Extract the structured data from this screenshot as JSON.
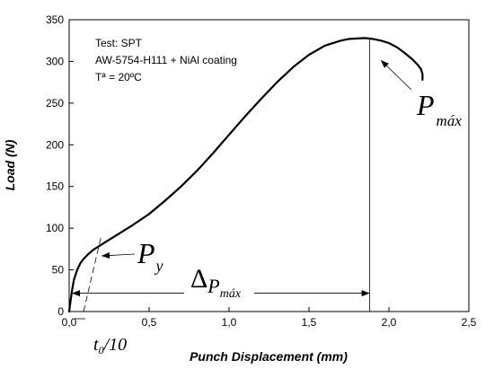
{
  "chart_data": {
    "type": "line",
    "xlabel": "Punch Displacement (mm)",
    "ylabel": "Load (N)",
    "xlim": [
      0,
      2.5
    ],
    "ylim": [
      0,
      350
    ],
    "x_ticks": [
      "0,0",
      "0,5",
      "1,0",
      "1,5",
      "2,0",
      "2,5"
    ],
    "x_tick_values": [
      0,
      0.5,
      1.0,
      1.5,
      2.0,
      2.5
    ],
    "y_ticks": [
      "0",
      "50",
      "100",
      "150",
      "200",
      "250",
      "300",
      "350"
    ],
    "y_tick_values": [
      0,
      50,
      100,
      150,
      200,
      250,
      300,
      350
    ],
    "grid": false,
    "info_lines": [
      "Test: SPT",
      "AW-5754-H111 + NiAl coating",
      "Tª = 20ºC"
    ],
    "series": [
      {
        "x": [
          0.0,
          0.01,
          0.02,
          0.03,
          0.05,
          0.07,
          0.09,
          0.12,
          0.15,
          0.2,
          0.25,
          0.3,
          0.4,
          0.5,
          0.6,
          0.7,
          0.8,
          0.9,
          1.0,
          1.1,
          1.2,
          1.3,
          1.4,
          1.5,
          1.6,
          1.7,
          1.75,
          1.8,
          1.85,
          1.9,
          1.95,
          2.0,
          2.05,
          2.1,
          2.15,
          2.18,
          2.2,
          2.21,
          2.21
        ],
        "y": [
          0,
          15,
          28,
          38,
          50,
          58,
          63,
          69,
          74,
          80,
          86,
          92,
          104,
          117,
          133,
          150,
          169,
          190,
          212,
          234,
          255,
          275,
          293,
          308,
          319,
          325,
          327,
          327.5,
          328,
          327,
          325,
          322,
          317,
          310,
          302,
          296,
          291,
          285,
          278
        ]
      }
    ],
    "annotations": {
      "p_max": {
        "symbol": "P",
        "subscript": "máx",
        "x": 1.88,
        "y": 327
      },
      "p_y": {
        "symbol": "P",
        "subscript": "y",
        "x": 0.2,
        "y": 72
      },
      "delta_p_max": {
        "symbol": "Δ",
        "sub_symbol": "P",
        "subscript": "máx",
        "from_x": 0.0,
        "to_x": 1.88,
        "y": 22
      },
      "t0_10": {
        "symbol": "t",
        "subscript": "0",
        "suffix": "/10",
        "x": 0.09
      },
      "offset_line": {
        "from": [
          0.09,
          0
        ],
        "to": [
          0.2,
          90
        ]
      }
    }
  }
}
